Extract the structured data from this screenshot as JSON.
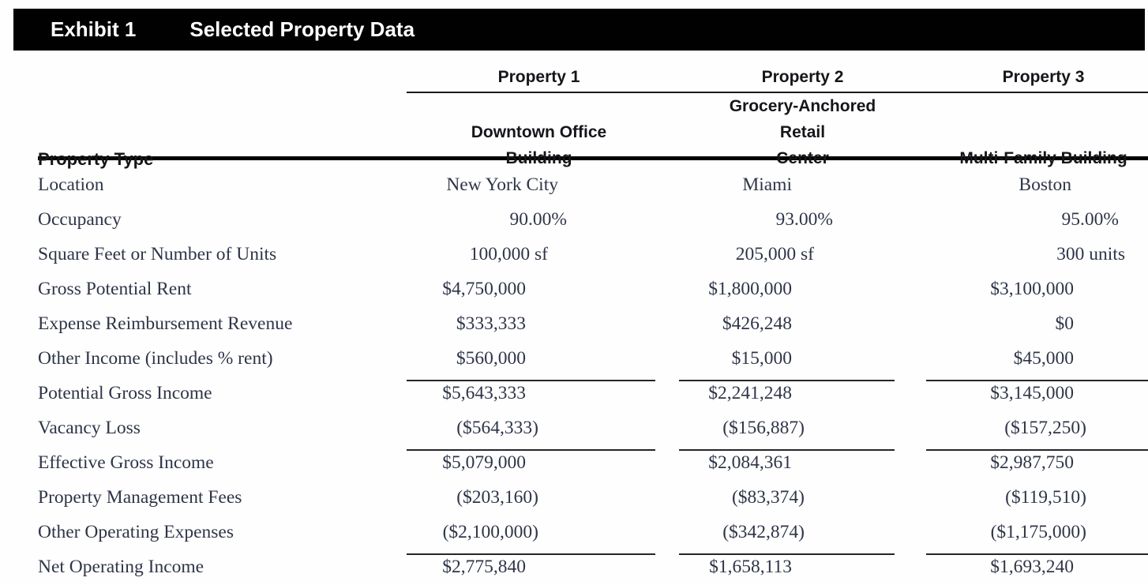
{
  "exhibit": {
    "label": "Exhibit 1",
    "title": "Selected Property Data"
  },
  "table": {
    "corner_header": "Property Type",
    "columns": [
      {
        "header": "Property 1",
        "subheader_line1": "Downtown Office",
        "subheader_line2": "Building"
      },
      {
        "header": "Property 2",
        "subheader_line1": "Grocery-Anchored Retail",
        "subheader_line2": "Center"
      },
      {
        "header": "Property 3",
        "subheader_line1": "Multi-Family Building",
        "subheader_line2": ""
      }
    ],
    "rows": [
      {
        "label": "Location",
        "type": "text",
        "underline_after": false,
        "values": [
          "New York City",
          "Miami",
          "Boston"
        ]
      },
      {
        "label": "Occupancy",
        "type": "pct",
        "underline_after": false,
        "values": [
          "90.00%",
          "93.00%",
          "95.00%"
        ]
      },
      {
        "label": "Square Feet or Number of Units",
        "type": "unit",
        "underline_after": false,
        "values": [
          "100,000 sf",
          "205,000 sf",
          "300 units"
        ]
      },
      {
        "label": "Gross Potential Rent",
        "type": "money",
        "underline_after": false,
        "values": [
          "$4,750,000",
          "$1,800,000",
          "$3,100,000"
        ]
      },
      {
        "label": "Expense Reimbursement Revenue",
        "type": "money",
        "underline_after": false,
        "values": [
          "$333,333",
          "$426,248",
          "$0"
        ]
      },
      {
        "label": "Other Income (includes % rent)",
        "type": "money",
        "underline_after": true,
        "values": [
          "$560,000",
          "$15,000",
          "$45,000"
        ]
      },
      {
        "label": "Potential Gross Income",
        "type": "money",
        "underline_after": false,
        "values": [
          "$5,643,333",
          "$2,241,248",
          "$3,145,000"
        ]
      },
      {
        "label": "Vacancy Loss",
        "type": "money",
        "underline_after": true,
        "values": [
          "($564,333)",
          "($156,887)",
          "($157,250)"
        ]
      },
      {
        "label": "Effective Gross Income",
        "type": "money",
        "underline_after": false,
        "values": [
          "$5,079,000",
          "$2,084,361",
          "$2,987,750"
        ]
      },
      {
        "label": "Property Management Fees",
        "type": "money",
        "underline_after": false,
        "values": [
          "($203,160)",
          "($83,374)",
          "($119,510)"
        ]
      },
      {
        "label": "Other Operating Expenses",
        "type": "money",
        "underline_after": true,
        "values": [
          "($2,100,000)",
          "($342,874)",
          "($1,175,000)"
        ]
      },
      {
        "label": "Net Operating Income",
        "type": "money",
        "underline_after": false,
        "values": [
          "$2,775,840",
          "$1,658,113",
          "$1,693,240"
        ]
      }
    ]
  },
  "colors": {
    "banner_bg": "#010101",
    "banner_text": "#ffffff",
    "heading_text": "#15161a",
    "body_text": "#2e3547",
    "rule": "#000000",
    "underline": "#26262b"
  }
}
